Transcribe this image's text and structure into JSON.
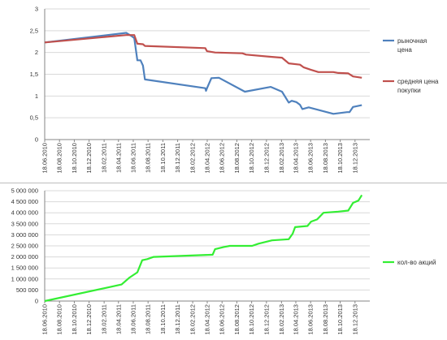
{
  "chart_data": [
    {
      "type": "line",
      "x_axis_type": "date",
      "x_tick_labels": [
        "18.06.2010",
        "18.08.2010",
        "18.10.2010",
        "18.12.2010",
        "18.02.2011",
        "18.04.2011",
        "18.06.2011",
        "18.08.2011",
        "18.10.2011",
        "18.12.2011",
        "18.02.2012",
        "18.04.2012",
        "18.06.2012",
        "18.08.2012",
        "18.10.2012",
        "18.12.2012",
        "18.02.2013",
        "18.04.2013",
        "18.06.2013",
        "18.08.2013",
        "18.10.2013",
        "18.12.2013"
      ],
      "ylim": [
        0,
        3
      ],
      "y_ticks": [
        0,
        0.5,
        1,
        1.5,
        2,
        2.5,
        3
      ],
      "y_tick_labels": [
        "0",
        "0,5",
        "1",
        "1,5",
        "2",
        "2,5",
        "3"
      ],
      "grid": "horizontal",
      "legend_position": "right",
      "series": [
        {
          "name_lines": [
            "рыночная",
            "цена"
          ],
          "color": "#4f81bd",
          "points": [
            [
              "2010-06-18",
              2.23
            ],
            [
              "2011-05-20",
              2.45
            ],
            [
              "2011-06-10",
              2.38
            ],
            [
              "2011-06-22",
              2.33
            ],
            [
              "2011-07-05",
              1.82
            ],
            [
              "2011-07-18",
              1.82
            ],
            [
              "2011-07-28",
              1.7
            ],
            [
              "2011-08-05",
              1.38
            ],
            [
              "2012-04-10",
              1.18
            ],
            [
              "2012-04-13",
              1.12
            ],
            [
              "2012-04-17",
              1.18
            ],
            [
              "2012-05-05",
              1.41
            ],
            [
              "2012-06-05",
              1.42
            ],
            [
              "2012-09-20",
              1.1
            ],
            [
              "2013-01-05",
              1.21
            ],
            [
              "2013-02-20",
              1.1
            ],
            [
              "2013-03-20",
              0.85
            ],
            [
              "2013-04-01",
              0.89
            ],
            [
              "2013-04-20",
              0.86
            ],
            [
              "2013-05-05",
              0.8
            ],
            [
              "2013-05-15",
              0.7
            ],
            [
              "2013-06-10",
              0.74
            ],
            [
              "2013-09-20",
              0.59
            ],
            [
              "2013-11-15",
              0.63
            ],
            [
              "2013-11-25",
              0.63
            ],
            [
              "2013-12-10",
              0.75
            ],
            [
              "2014-01-15",
              0.79
            ]
          ]
        },
        {
          "name_lines": [
            "средняя цена",
            "покупки"
          ],
          "color": "#c0504d",
          "points": [
            [
              "2010-06-18",
              2.23
            ],
            [
              "2011-05-20",
              2.4
            ],
            [
              "2011-06-10",
              2.4
            ],
            [
              "2011-06-22",
              2.4
            ],
            [
              "2011-07-05",
              2.2
            ],
            [
              "2011-07-28",
              2.19
            ],
            [
              "2011-08-05",
              2.15
            ],
            [
              "2012-04-10",
              2.1
            ],
            [
              "2012-04-17",
              2.03
            ],
            [
              "2012-05-20",
              2.0
            ],
            [
              "2012-09-10",
              1.98
            ],
            [
              "2012-09-25",
              1.95
            ],
            [
              "2013-01-05",
              1.9
            ],
            [
              "2013-02-20",
              1.88
            ],
            [
              "2013-03-20",
              1.75
            ],
            [
              "2013-05-05",
              1.72
            ],
            [
              "2013-05-20",
              1.66
            ],
            [
              "2013-06-20",
              1.6
            ],
            [
              "2013-07-20",
              1.55
            ],
            [
              "2013-09-20",
              1.55
            ],
            [
              "2013-10-10",
              1.53
            ],
            [
              "2013-11-20",
              1.52
            ],
            [
              "2013-12-10",
              1.45
            ],
            [
              "2014-01-15",
              1.42
            ]
          ]
        }
      ]
    },
    {
      "type": "line",
      "x_axis_type": "date",
      "x_tick_labels": [
        "18.06.2010",
        "18.08.2010",
        "18.10.2010",
        "18.12.2010",
        "18.02.2011",
        "18.04.2011",
        "18.06.2011",
        "18.08.2011",
        "18.10.2011",
        "18.12.2011",
        "18.02.2012",
        "18.04.2012",
        "18.06.2012",
        "18.08.2012",
        "18.10.2012",
        "18.12.2012",
        "18.02.2013",
        "18.04.2013",
        "18.06.2013",
        "18.08.2013",
        "18.10.2013",
        "18.12.2013"
      ],
      "ylim": [
        0,
        5000000
      ],
      "y_ticks": [
        0,
        500000,
        1000000,
        1500000,
        2000000,
        2500000,
        3000000,
        3500000,
        4000000,
        4500000,
        5000000
      ],
      "y_tick_labels": [
        "0",
        "500 000",
        "1 000 000",
        "1 500 000",
        "2 000 000",
        "2 500 000",
        "3 000 000",
        "3 500 000",
        "4 000 000",
        "4 500 000",
        "5 000 000"
      ],
      "grid": "horizontal",
      "legend_position": "right",
      "series": [
        {
          "name_lines": [
            "кол-во акций"
          ],
          "color": "#33ee33",
          "points": [
            [
              "2010-06-18",
              0
            ],
            [
              "2011-05-01",
              750000
            ],
            [
              "2011-06-01",
              1050000
            ],
            [
              "2011-07-05",
              1300000
            ],
            [
              "2011-07-25",
              1850000
            ],
            [
              "2011-08-15",
              1900000
            ],
            [
              "2011-09-10",
              2000000
            ],
            [
              "2012-05-10",
              2100000
            ],
            [
              "2012-05-20",
              2350000
            ],
            [
              "2012-06-25",
              2450000
            ],
            [
              "2012-07-20",
              2500000
            ],
            [
              "2012-10-20",
              2500000
            ],
            [
              "2012-11-15",
              2600000
            ],
            [
              "2013-01-10",
              2750000
            ],
            [
              "2013-03-20",
              2800000
            ],
            [
              "2013-04-05",
              3050000
            ],
            [
              "2013-04-15",
              3350000
            ],
            [
              "2013-06-05",
              3400000
            ],
            [
              "2013-06-20",
              3600000
            ],
            [
              "2013-07-15",
              3700000
            ],
            [
              "2013-08-10",
              4000000
            ],
            [
              "2013-10-10",
              4050000
            ],
            [
              "2013-11-20",
              4100000
            ],
            [
              "2013-12-10",
              4450000
            ],
            [
              "2014-01-01",
              4550000
            ],
            [
              "2014-01-15",
              4800000
            ]
          ]
        }
      ]
    }
  ]
}
